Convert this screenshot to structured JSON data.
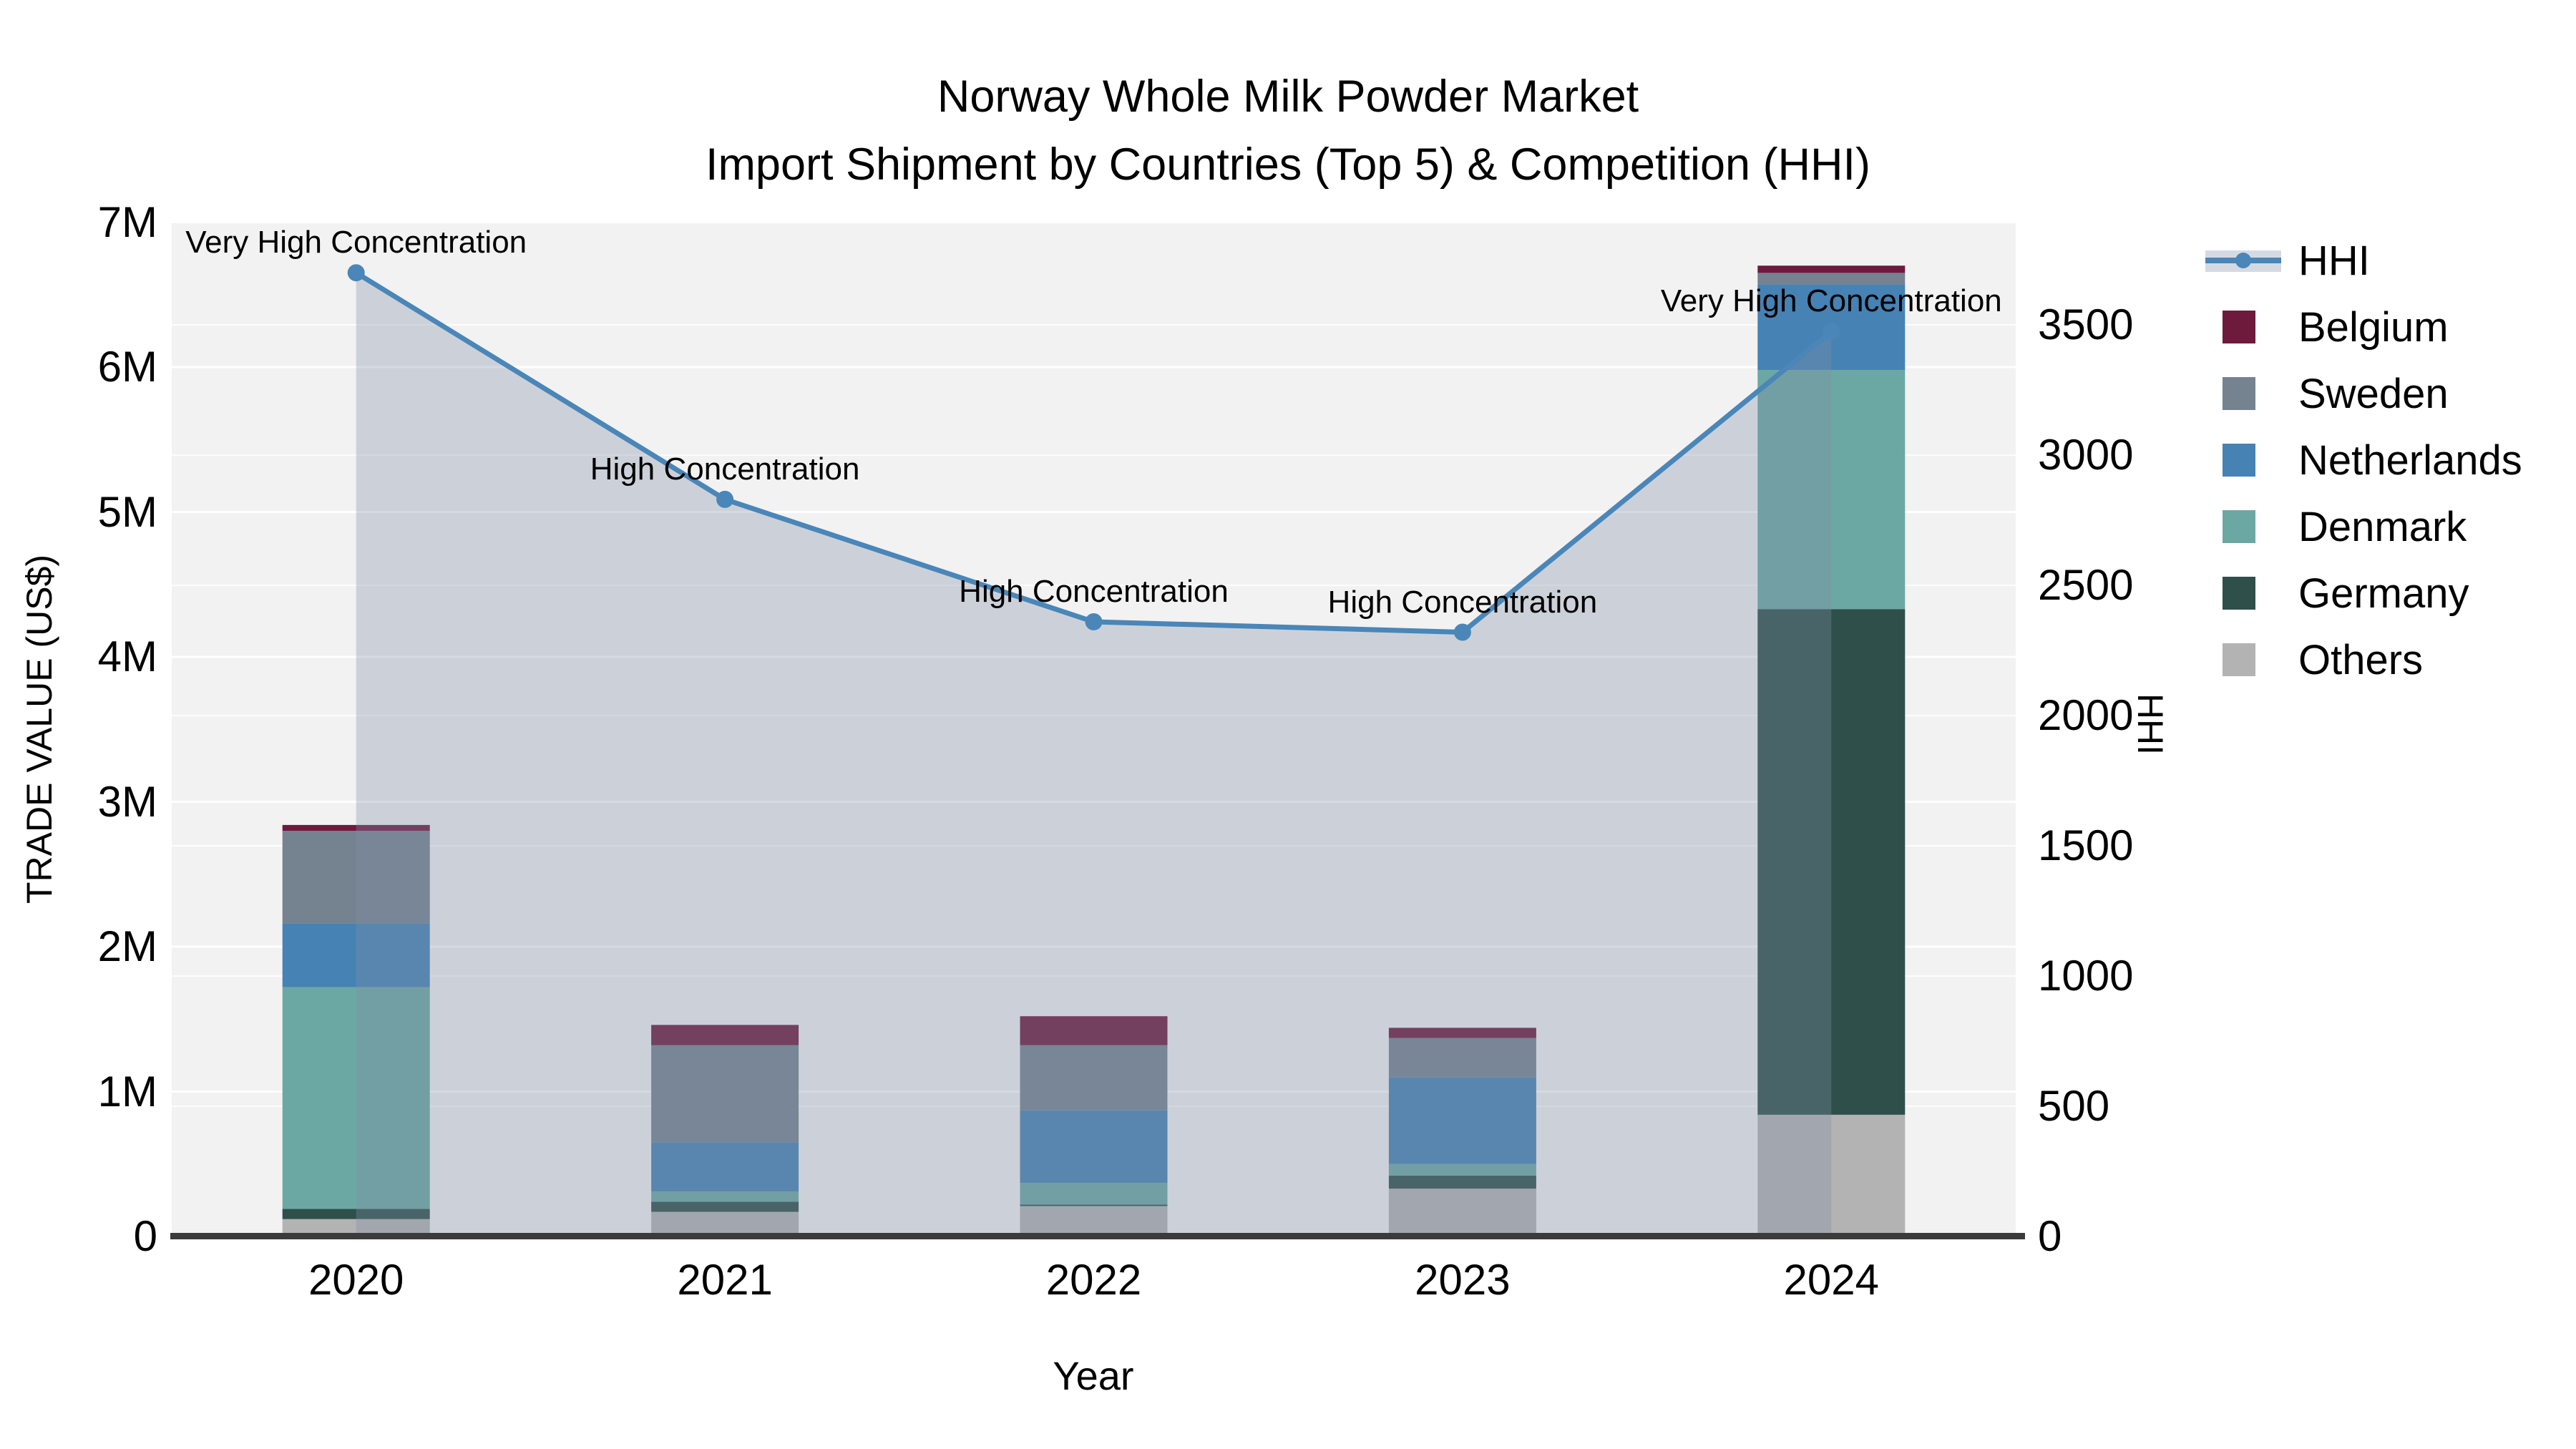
{
  "title": {
    "line1": "Norway Whole Milk Powder Market",
    "line2": "Import Shipment by Countries (Top 5) & Competition (HHI)"
  },
  "axes": {
    "y_left": {
      "title": "TRADE VALUE (US$)",
      "ticks": [
        "0",
        "1M",
        "2M",
        "3M",
        "4M",
        "5M",
        "6M",
        "7M"
      ],
      "max_millions": 7
    },
    "y_right": {
      "title": "HHI",
      "ticks": [
        "0",
        "500",
        "1000",
        "1500",
        "2000",
        "2500",
        "3000",
        "3500"
      ],
      "max": 3500,
      "gridline_step": 500
    },
    "x": {
      "title": "Year",
      "categories": [
        "2020",
        "2021",
        "2022",
        "2023",
        "2024"
      ]
    }
  },
  "legend": {
    "items": [
      {
        "label": "HHI",
        "type": "line",
        "color": "#4a86b8"
      },
      {
        "label": "Belgium",
        "type": "swatch",
        "color": "#6e1a3c"
      },
      {
        "label": "Sweden",
        "type": "swatch",
        "color": "#75828f"
      },
      {
        "label": "Netherlands",
        "type": "swatch",
        "color": "#4682b4"
      },
      {
        "label": "Denmark",
        "type": "swatch",
        "color": "#6ca8a3"
      },
      {
        "label": "Germany",
        "type": "swatch",
        "color": "#2f4f4b"
      },
      {
        "label": "Others",
        "type": "swatch",
        "color": "#b3b3b3"
      }
    ]
  },
  "chart_data": {
    "type": [
      "stacked-bar",
      "line"
    ],
    "title": "Norway Whole Milk Powder Market — Import Shipment by Countries (Top 5) & Competition (HHI)",
    "categories": [
      "2020",
      "2021",
      "2022",
      "2023",
      "2024"
    ],
    "bar_value_unit": "million US$ (left axis, TRADE VALUE (US$), range 0–7M)",
    "stack_order_bottom_to_top": [
      "Others",
      "Germany",
      "Denmark",
      "Netherlands",
      "Sweden",
      "Belgium"
    ],
    "series": [
      {
        "name": "Others",
        "color": "#b3b3b3",
        "values": [
          0.12,
          0.17,
          0.21,
          0.33,
          0.84
        ]
      },
      {
        "name": "Germany",
        "color": "#2f4f4b",
        "values": [
          0.07,
          0.07,
          0.01,
          0.09,
          3.49
        ]
      },
      {
        "name": "Denmark",
        "color": "#6ca8a3",
        "values": [
          1.53,
          0.07,
          0.15,
          0.08,
          1.65
        ]
      },
      {
        "name": "Netherlands",
        "color": "#4682b4",
        "values": [
          0.44,
          0.34,
          0.5,
          0.6,
          0.59
        ]
      },
      {
        "name": "Sweden",
        "color": "#75828f",
        "values": [
          0.64,
          0.67,
          0.45,
          0.27,
          0.08
        ]
      },
      {
        "name": "Belgium",
        "color": "#6e1a3c",
        "values": [
          0.04,
          0.14,
          0.2,
          0.07,
          0.05
        ]
      }
    ],
    "bar_totals_millions": [
      2.84,
      1.46,
      1.52,
      1.44,
      6.7
    ],
    "hhi_line": {
      "name": "HHI",
      "values": [
        3700,
        2830,
        2360,
        2320,
        3475
      ],
      "axis": "right (HHI, range 0–3500 shown)",
      "line_color": "#4a86b8",
      "area_fill": "rgba(128,143,167,0.33)",
      "markers": true
    },
    "annotations": [
      {
        "category": "2020",
        "text": "Very High Concentration"
      },
      {
        "category": "2021",
        "text": "High Concentration"
      },
      {
        "category": "2022",
        "text": "High Concentration"
      },
      {
        "category": "2023",
        "text": "High Concentration"
      },
      {
        "category": "2024",
        "text": "Very High Concentration"
      }
    ],
    "layout": {
      "plot_background": "#f2f2f2",
      "gridlines": "both axes, light",
      "legend_position": "right-top outside"
    }
  }
}
